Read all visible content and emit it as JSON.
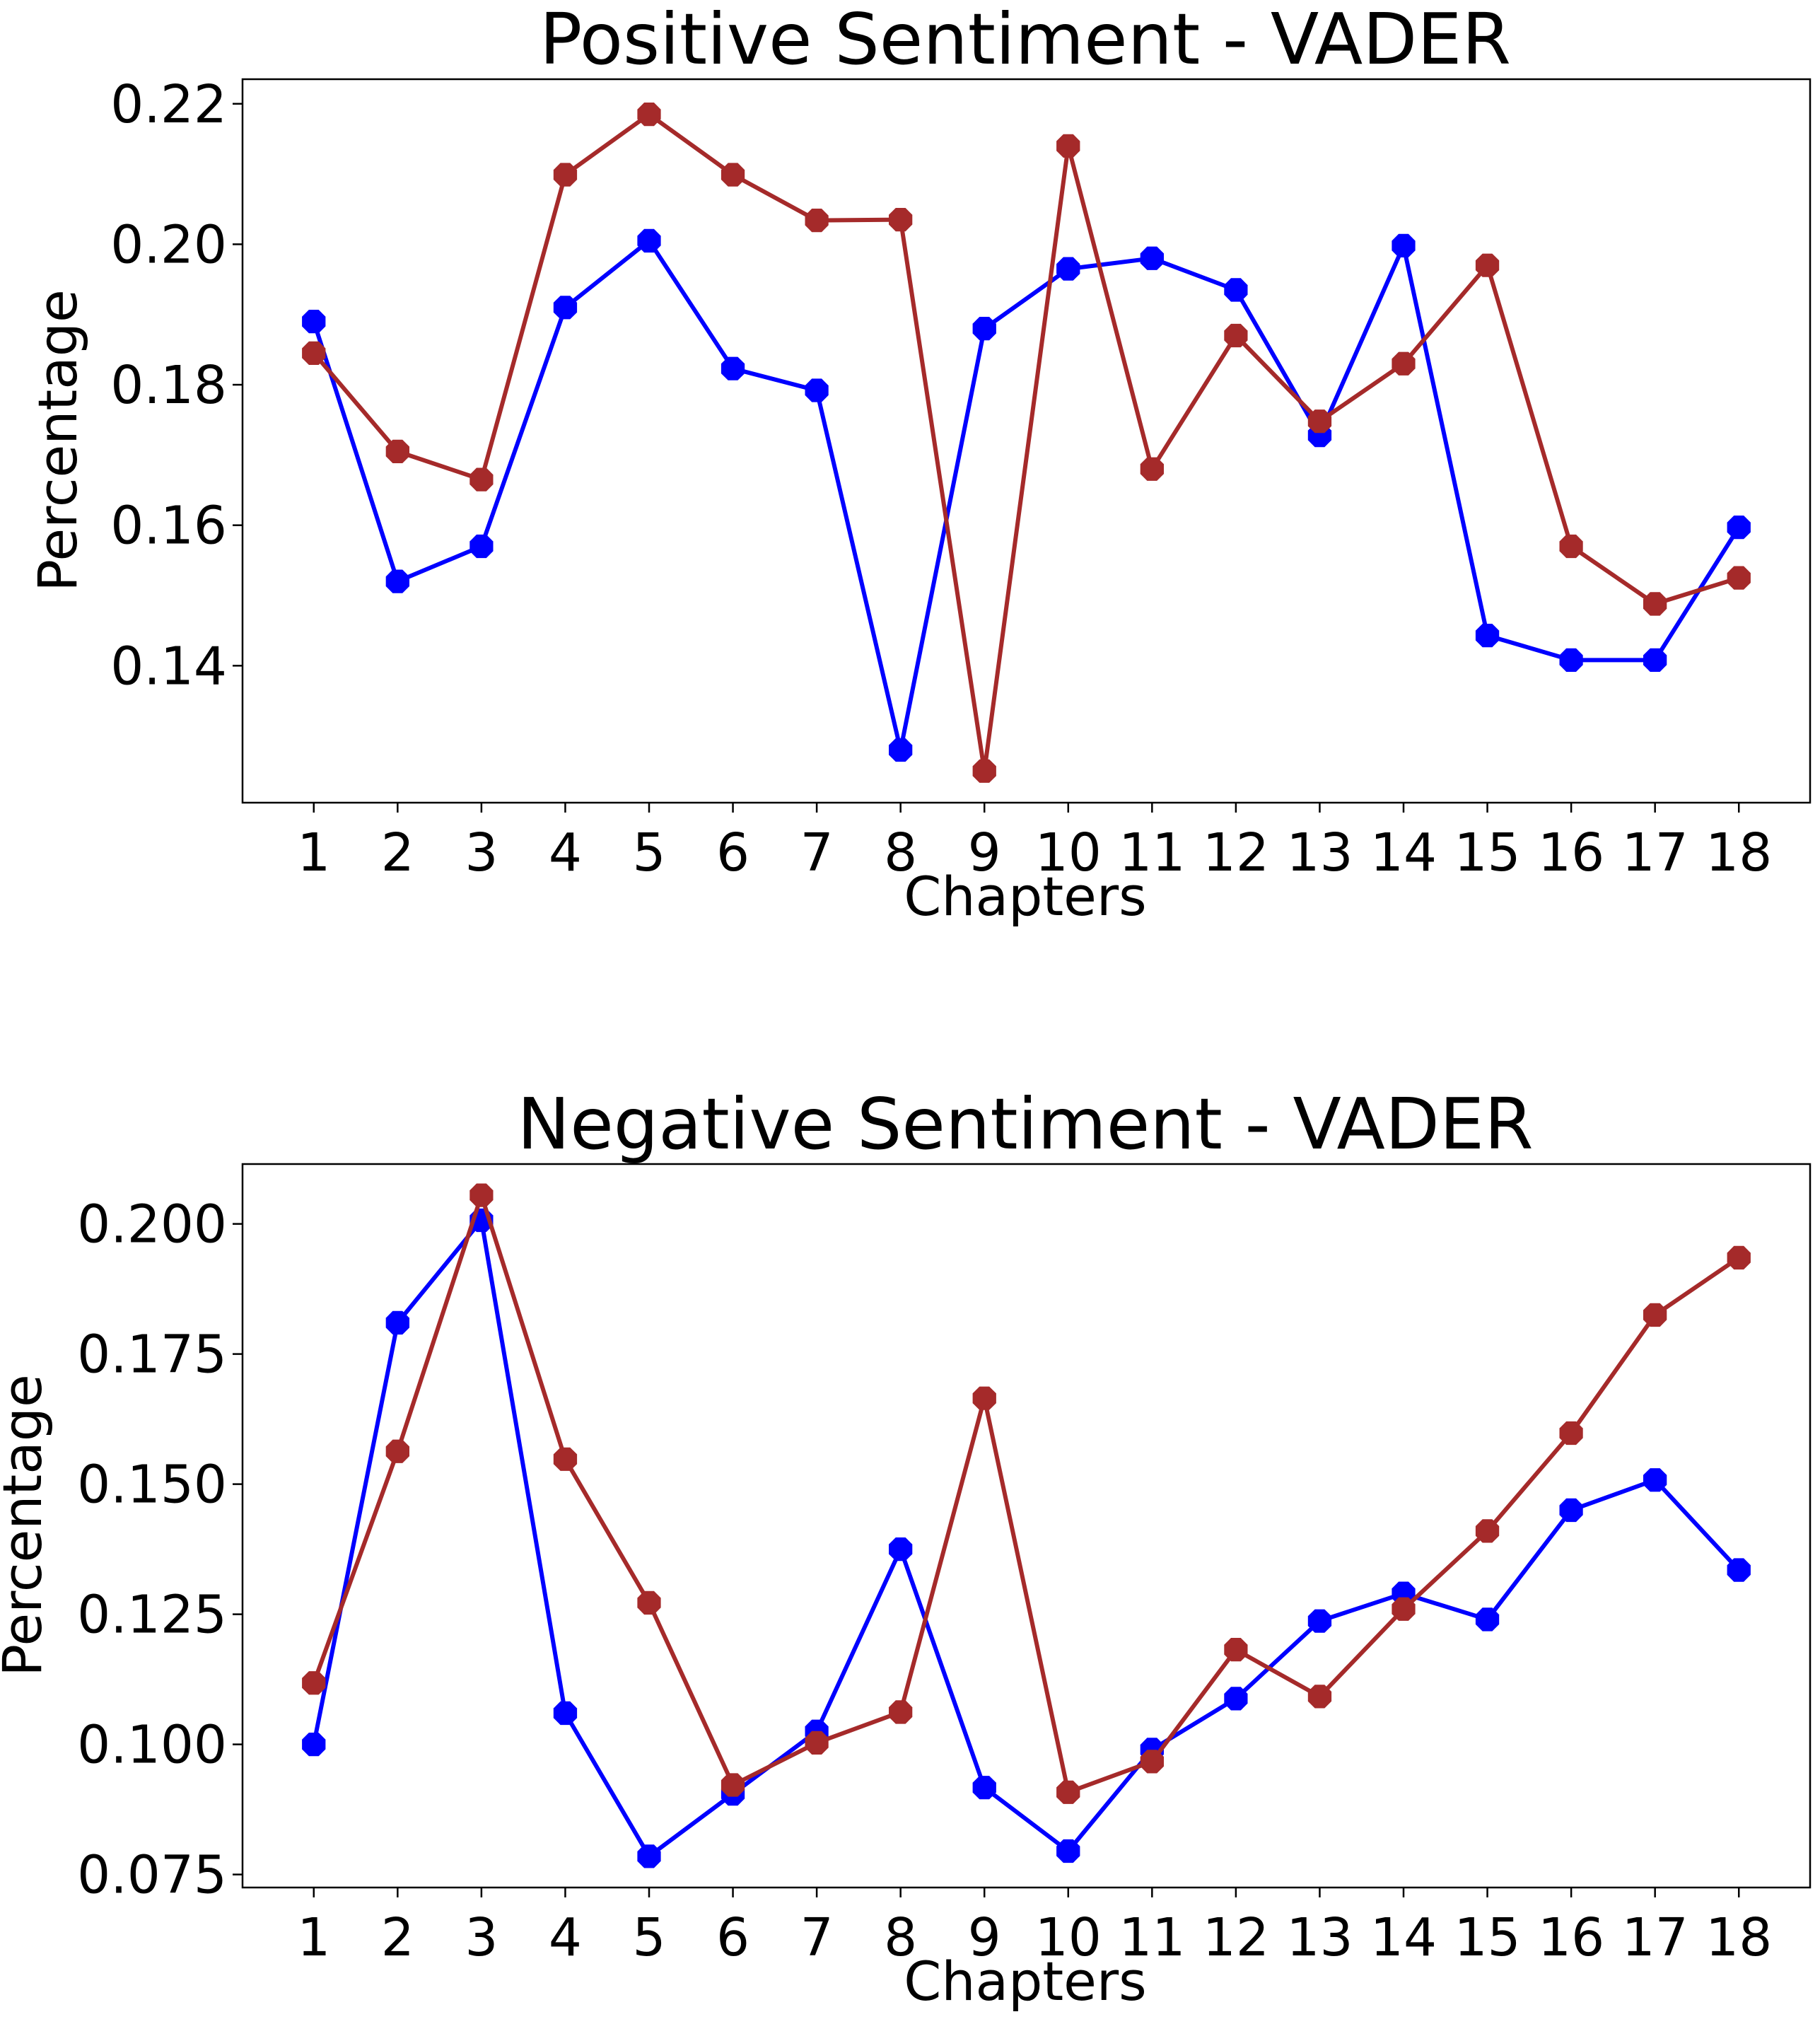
{
  "colors": {
    "series_1": "#0000ff",
    "series_2": "#a52a2a",
    "background": "#ffffff",
    "text": "#000000"
  },
  "chart_data": [
    {
      "type": "line",
      "title": "Positive Sentiment - VADER",
      "xlabel": "Chapters",
      "ylabel": "Percentage",
      "x": [
        1,
        2,
        3,
        4,
        5,
        6,
        7,
        8,
        9,
        10,
        11,
        12,
        13,
        14,
        15,
        16,
        17,
        18
      ],
      "ylim": [
        0.1205,
        0.2235
      ],
      "yticks": [
        0.14,
        0.16,
        0.18,
        0.2,
        0.22
      ],
      "ytick_labels": [
        "0.14",
        "0.16",
        "0.18",
        "0.20",
        "0.22"
      ],
      "grid": false,
      "legend": "none",
      "series": [
        {
          "color": "#0000ff",
          "marker": "octagon",
          "values": [
            0.189,
            0.152,
            0.157,
            0.191,
            0.2005,
            0.1823,
            0.1792,
            0.128,
            0.188,
            0.1965,
            0.198,
            0.1935,
            0.1728,
            0.1998,
            0.1443,
            0.1408,
            0.1408,
            0.1597
          ]
        },
        {
          "color": "#a52a2a",
          "marker": "octagon",
          "values": [
            0.1845,
            0.1705,
            0.1665,
            0.2099,
            0.2185,
            0.2099,
            0.2034,
            0.2035,
            0.125,
            0.214,
            0.168,
            0.187,
            0.1748,
            0.183,
            0.197,
            0.157,
            0.1488,
            0.1525
          ]
        }
      ]
    },
    {
      "type": "line",
      "title": "Negative Sentiment - VADER",
      "xlabel": "Chapters",
      "ylabel": "Percentage",
      "x": [
        1,
        2,
        3,
        4,
        5,
        6,
        7,
        8,
        9,
        10,
        11,
        12,
        13,
        14,
        15,
        16,
        17,
        18
      ],
      "ylim": [
        0.0725,
        0.2115
      ],
      "yticks": [
        0.075,
        0.1,
        0.125,
        0.15,
        0.175,
        0.2
      ],
      "ytick_labels": [
        "0.075",
        "0.100",
        "0.125",
        "0.150",
        "0.175",
        "0.200"
      ],
      "grid": false,
      "legend": "none",
      "series": [
        {
          "color": "#0000ff",
          "marker": "octagon",
          "values": [
            0.1,
            0.181,
            0.2007,
            0.106,
            0.0785,
            0.0905,
            0.1025,
            0.1375,
            0.0917,
            0.0795,
            0.099,
            0.1088,
            0.1237,
            0.129,
            0.124,
            0.145,
            0.1508,
            0.1335
          ]
        },
        {
          "color": "#a52a2a",
          "marker": "octagon",
          "values": [
            0.1118,
            0.1563,
            0.2055,
            0.1548,
            0.1272,
            0.0922,
            0.1003,
            0.1062,
            0.1665,
            0.0908,
            0.0967,
            0.1182,
            0.1092,
            0.126,
            0.141,
            0.1598,
            0.1825,
            0.1935
          ]
        }
      ]
    }
  ]
}
